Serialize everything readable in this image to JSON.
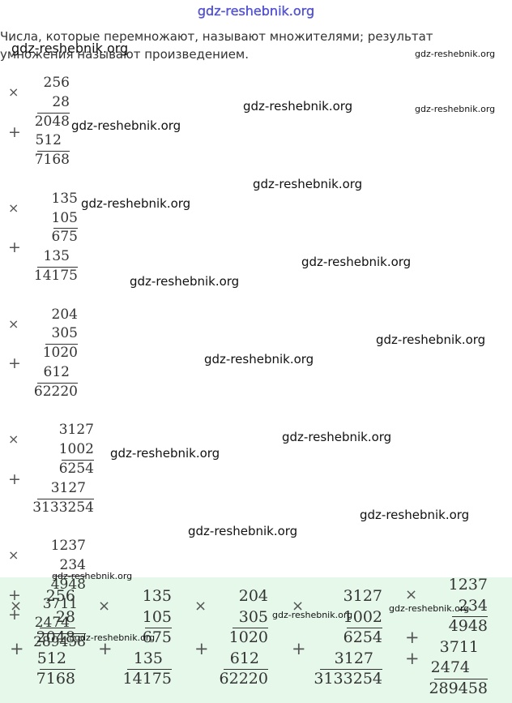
{
  "header": {
    "site": "gdz-reshebnik.org"
  },
  "intro": "Числа, которые перемножают, называют множителями; результат умножения называют произведением.",
  "watermark": "gdz-reshebnik.org",
  "operators": {
    "times": "×",
    "plus": "+"
  },
  "problems": [
    {
      "factors": [
        "256",
        "28"
      ],
      "partials": [
        "2048",
        "512"
      ],
      "product": "7168"
    },
    {
      "factors": [
        "135",
        "105"
      ],
      "partials": [
        "675",
        "135"
      ],
      "product": "14175"
    },
    {
      "factors": [
        "204",
        "305"
      ],
      "partials": [
        "1020",
        "612"
      ],
      "product": "62220"
    },
    {
      "factors": [
        "3127",
        "1002"
      ],
      "partials": [
        "6254",
        "3127"
      ],
      "product": "3133254"
    },
    {
      "factors": [
        "1237",
        "234"
      ],
      "partials": [
        "4948",
        "3711",
        "2474"
      ],
      "product": "289458"
    }
  ]
}
